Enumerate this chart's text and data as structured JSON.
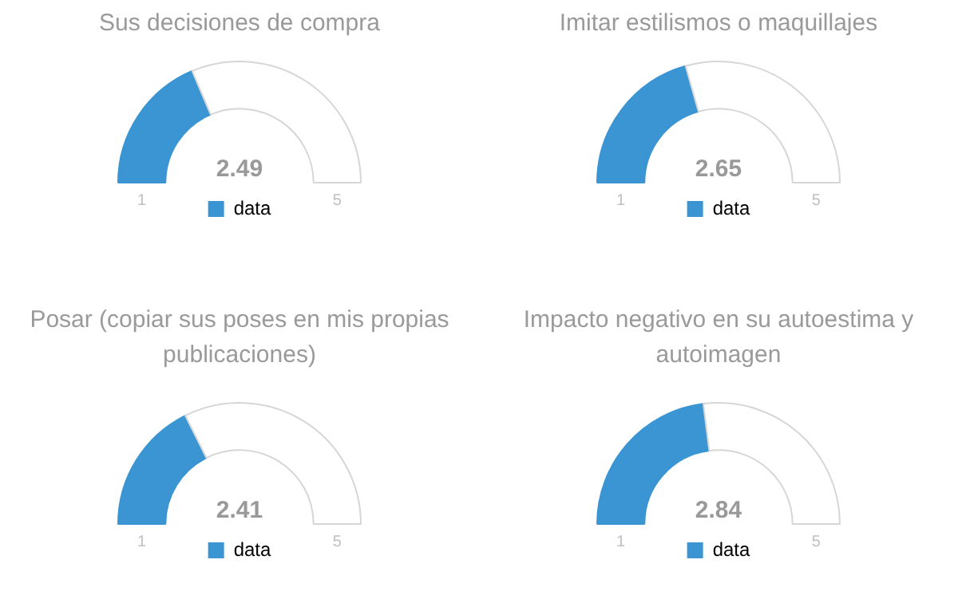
{
  "chart_data": [
    {
      "type": "other",
      "title": "Sus decisiones de compra",
      "series": [
        {
          "name": "data",
          "color": "#3a95d2",
          "values": [
            2.49
          ]
        }
      ],
      "annotations": [
        "1",
        "5"
      ],
      "data_labels": true,
      "legend": "bottom"
    },
    {
      "type": "other",
      "title": "Imitar estilismos o maquillajes",
      "series": [
        {
          "name": "data",
          "color": "#3a95d2",
          "values": [
            2.65
          ]
        }
      ],
      "annotations": [
        "1",
        "5"
      ],
      "data_labels": true,
      "legend": "bottom"
    },
    {
      "type": "other",
      "title": "Posar (copiar sus poses en mis propias publicaciones)",
      "series": [
        {
          "name": "data",
          "color": "#3a95d2",
          "values": [
            2.41
          ]
        }
      ],
      "annotations": [
        "1",
        "5"
      ],
      "data_labels": true,
      "legend": "bottom"
    },
    {
      "type": "other",
      "title": "Impacto negativo en su autoestima y autoimagen",
      "series": [
        {
          "name": "data",
          "color": "#3a95d2",
          "values": [
            2.84
          ]
        }
      ],
      "annotations": [
        "1",
        "5"
      ],
      "data_labels": true,
      "legend": "bottom"
    }
  ]
}
